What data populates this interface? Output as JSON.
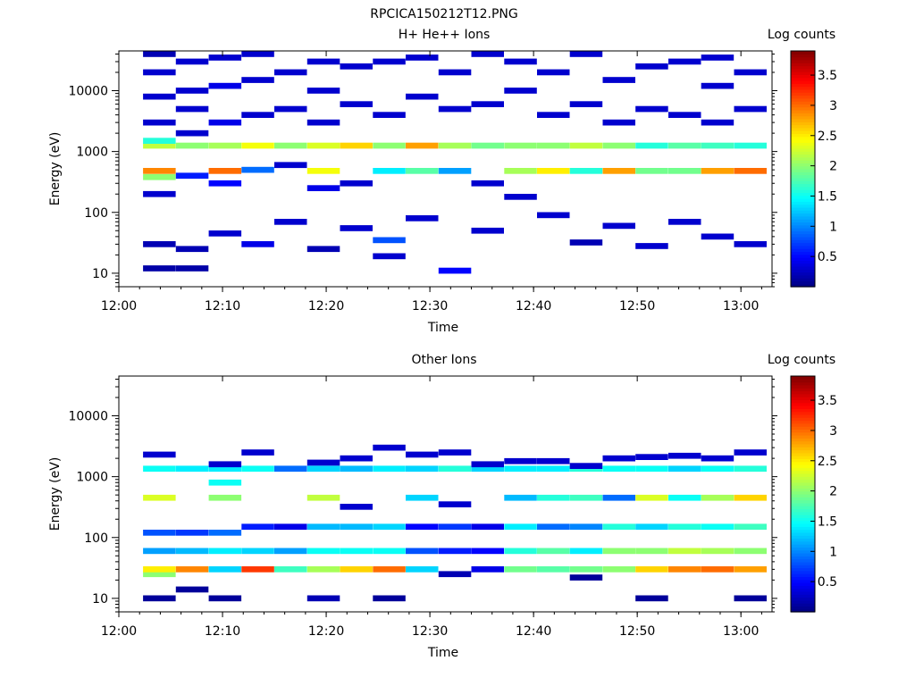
{
  "figure_title": "RPCICA150212T12.PNG",
  "chart_data": [
    {
      "type": "heatmap",
      "title": "H+ He++ Ions",
      "xlabel": "Time",
      "ylabel": "Energy (eV)",
      "colorbar_label": "Log counts",
      "x_ticks": [
        "12:00",
        "12:10",
        "12:20",
        "12:30",
        "12:40",
        "12:50",
        "13:00"
      ],
      "y_ticks": [
        "10",
        "100",
        "1000",
        "10000"
      ],
      "colorbar_ticks": [
        "0.5",
        "1",
        "1.5",
        "2",
        "2.5",
        "3",
        "3.5"
      ],
      "y_scale": "log",
      "y_range_eV": [
        6,
        45000
      ],
      "x_range": [
        "12:00",
        "13:03"
      ],
      "color_range": [
        0,
        3.9
      ],
      "colormap": "jet",
      "time_bins_start": [
        "12:02:20",
        "12:05:30",
        "12:08:40",
        "12:11:50",
        "12:15:00",
        "12:18:10",
        "12:21:20",
        "12:24:30",
        "12:27:40",
        "12:30:50",
        "12:34:00",
        "12:37:10",
        "12:40:20",
        "12:43:30",
        "12:46:40",
        "12:49:50",
        "12:53:00",
        "12:56:10",
        "12:59:20"
      ],
      "time_bin_width_min": 3.15,
      "columns": [
        [
          [
            12,
            0.15
          ],
          [
            30,
            0.2
          ],
          [
            200,
            0.3
          ],
          [
            380,
            2.0
          ],
          [
            480,
            2.9
          ],
          [
            1250,
            2.2
          ],
          [
            1500,
            1.6
          ],
          [
            3000,
            0.3
          ],
          [
            8000,
            0.3
          ],
          [
            20000,
            0.3
          ],
          [
            40000,
            0.2
          ]
        ],
        [
          [
            12,
            0.15
          ],
          [
            25,
            0.2
          ],
          [
            400,
            0.6
          ],
          [
            1250,
            2.0
          ],
          [
            2000,
            0.3
          ],
          [
            5000,
            0.3
          ],
          [
            10000,
            0.3
          ],
          [
            30000,
            0.3
          ]
        ],
        [
          [
            45,
            0.3
          ],
          [
            300,
            0.5
          ],
          [
            480,
            3.0
          ],
          [
            1250,
            2.1
          ],
          [
            3000,
            0.4
          ],
          [
            12000,
            0.4
          ],
          [
            35000,
            0.3
          ]
        ],
        [
          [
            30,
            0.4
          ],
          [
            500,
            0.9
          ],
          [
            1250,
            2.4
          ],
          [
            4000,
            0.3
          ],
          [
            15000,
            0.3
          ],
          [
            40000,
            0.3
          ]
        ],
        [
          [
            70,
            0.3
          ],
          [
            600,
            0.3
          ],
          [
            1250,
            2.0
          ],
          [
            5000,
            0.3
          ],
          [
            20000,
            0.3
          ]
        ],
        [
          [
            25,
            0.2
          ],
          [
            250,
            0.4
          ],
          [
            480,
            2.4
          ],
          [
            1250,
            2.3
          ],
          [
            3000,
            0.3
          ],
          [
            10000,
            0.3
          ],
          [
            30000,
            0.3
          ]
        ],
        [
          [
            55,
            0.3
          ],
          [
            300,
            0.3
          ],
          [
            1250,
            2.6
          ],
          [
            6000,
            0.3
          ],
          [
            25000,
            0.3
          ]
        ],
        [
          [
            19,
            0.3
          ],
          [
            35,
            0.8
          ],
          [
            480,
            1.4
          ],
          [
            1250,
            2.0
          ],
          [
            4000,
            0.3
          ],
          [
            30000,
            0.3
          ]
        ],
        [
          [
            80,
            0.3
          ],
          [
            480,
            1.8
          ],
          [
            1250,
            2.8
          ],
          [
            8000,
            0.3
          ],
          [
            35000,
            0.3
          ]
        ],
        [
          [
            11,
            0.5
          ],
          [
            480,
            1.1
          ],
          [
            1250,
            2.1
          ],
          [
            5000,
            0.3
          ],
          [
            20000,
            0.3
          ]
        ],
        [
          [
            50,
            0.3
          ],
          [
            300,
            0.3
          ],
          [
            1250,
            1.9
          ],
          [
            6000,
            0.3
          ],
          [
            40000,
            0.3
          ]
        ],
        [
          [
            180,
            0.3
          ],
          [
            480,
            2.1
          ],
          [
            1250,
            2.0
          ],
          [
            10000,
            0.3
          ],
          [
            30000,
            0.3
          ]
        ],
        [
          [
            90,
            0.3
          ],
          [
            480,
            2.5
          ],
          [
            1250,
            2.0
          ],
          [
            4000,
            0.3
          ],
          [
            20000,
            0.3
          ]
        ],
        [
          [
            32,
            0.2
          ],
          [
            480,
            1.6
          ],
          [
            1250,
            2.2
          ],
          [
            6000,
            0.3
          ],
          [
            40000,
            0.3
          ]
        ],
        [
          [
            60,
            0.3
          ],
          [
            480,
            2.8
          ],
          [
            1250,
            2.0
          ],
          [
            3000,
            0.3
          ],
          [
            15000,
            0.3
          ]
        ],
        [
          [
            28,
            0.3
          ],
          [
            480,
            1.9
          ],
          [
            1250,
            1.6
          ],
          [
            5000,
            0.3
          ],
          [
            25000,
            0.3
          ]
        ],
        [
          [
            70,
            0.3
          ],
          [
            480,
            1.9
          ],
          [
            1250,
            1.8
          ],
          [
            4000,
            0.3
          ],
          [
            30000,
            0.3
          ]
        ],
        [
          [
            40,
            0.3
          ],
          [
            480,
            2.8
          ],
          [
            1250,
            1.7
          ],
          [
            3000,
            0.3
          ],
          [
            12000,
            0.3
          ],
          [
            35000,
            0.3
          ]
        ],
        [
          [
            30,
            0.3
          ],
          [
            480,
            3.0
          ],
          [
            1250,
            1.6
          ],
          [
            5000,
            0.3
          ],
          [
            20000,
            0.3
          ]
        ]
      ]
    },
    {
      "type": "heatmap",
      "title": "Other Ions",
      "xlabel": "Time",
      "ylabel": "Energy (eV)",
      "colorbar_label": "Log counts",
      "x_ticks": [
        "12:00",
        "12:10",
        "12:20",
        "12:30",
        "12:40",
        "12:50",
        "13:00"
      ],
      "y_ticks": [
        "10",
        "100",
        "1000",
        "10000"
      ],
      "colorbar_ticks": [
        "0.5",
        "1",
        "1.5",
        "2",
        "2.5",
        "3",
        "3.5"
      ],
      "y_scale": "log",
      "y_range_eV": [
        6,
        45000
      ],
      "x_range": [
        "12:00",
        "13:03"
      ],
      "color_range": [
        0,
        3.9
      ],
      "colormap": "jet",
      "time_bins_start": [
        "12:02:20",
        "12:05:30",
        "12:08:40",
        "12:11:50",
        "12:15:00",
        "12:18:10",
        "12:21:20",
        "12:24:30",
        "12:27:40",
        "12:30:50",
        "12:34:00",
        "12:37:10",
        "12:40:20",
        "12:43:30",
        "12:46:40",
        "12:49:50",
        "12:53:00",
        "12:56:10",
        "12:59:20"
      ],
      "time_bin_width_min": 3.15,
      "columns": [
        [
          [
            10,
            0.1
          ],
          [
            25,
            2.0
          ],
          [
            30,
            2.5
          ],
          [
            60,
            1.1
          ],
          [
            120,
            0.8
          ],
          [
            450,
            2.3
          ],
          [
            1350,
            1.5
          ],
          [
            2300,
            0.3
          ]
        ],
        [
          [
            14,
            0.1
          ],
          [
            30,
            2.9
          ],
          [
            60,
            1.2
          ],
          [
            120,
            0.7
          ],
          [
            1350,
            1.4
          ]
        ],
        [
          [
            10,
            0.1
          ],
          [
            30,
            1.3
          ],
          [
            60,
            1.4
          ],
          [
            120,
            0.9
          ],
          [
            450,
            2.0
          ],
          [
            800,
            1.5
          ],
          [
            1350,
            1.4
          ],
          [
            1600,
            0.3
          ]
        ],
        [
          [
            30,
            3.2
          ],
          [
            60,
            1.3
          ],
          [
            150,
            0.6
          ],
          [
            1350,
            1.5
          ],
          [
            2500,
            0.3
          ]
        ],
        [
          [
            30,
            1.7
          ],
          [
            60,
            1.1
          ],
          [
            150,
            0.4
          ],
          [
            1350,
            0.9
          ]
        ],
        [
          [
            10,
            0.2
          ],
          [
            30,
            2.1
          ],
          [
            60,
            1.5
          ],
          [
            150,
            1.2
          ],
          [
            450,
            2.2
          ],
          [
            1350,
            1.3
          ],
          [
            1700,
            0.3
          ]
        ],
        [
          [
            30,
            2.6
          ],
          [
            60,
            1.5
          ],
          [
            150,
            1.2
          ],
          [
            320,
            0.3
          ],
          [
            1350,
            1.2
          ],
          [
            2000,
            0.3
          ]
        ],
        [
          [
            10,
            0.1
          ],
          [
            30,
            3.0
          ],
          [
            60,
            1.5
          ],
          [
            150,
            1.3
          ],
          [
            1350,
            1.4
          ],
          [
            3000,
            0.3
          ]
        ],
        [
          [
            30,
            1.3
          ],
          [
            60,
            0.8
          ],
          [
            150,
            0.5
          ],
          [
            450,
            1.3
          ],
          [
            1350,
            1.3
          ],
          [
            2300,
            0.3
          ]
        ],
        [
          [
            25,
            0.2
          ],
          [
            60,
            0.6
          ],
          [
            150,
            0.7
          ],
          [
            350,
            0.3
          ],
          [
            1350,
            1.6
          ],
          [
            2500,
            0.3
          ]
        ],
        [
          [
            30,
            0.4
          ],
          [
            60,
            0.5
          ],
          [
            150,
            0.4
          ],
          [
            1350,
            1.3
          ],
          [
            1600,
            0.3
          ]
        ],
        [
          [
            30,
            1.9
          ],
          [
            60,
            1.6
          ],
          [
            150,
            1.4
          ],
          [
            450,
            1.2
          ],
          [
            1350,
            1.4
          ],
          [
            1800,
            0.3
          ]
        ],
        [
          [
            30,
            1.8
          ],
          [
            60,
            1.8
          ],
          [
            150,
            0.9
          ],
          [
            450,
            1.6
          ],
          [
            1350,
            1.4
          ],
          [
            1800,
            0.3
          ]
        ],
        [
          [
            22,
            0.1
          ],
          [
            30,
            1.9
          ],
          [
            60,
            1.4
          ],
          [
            150,
            1.0
          ],
          [
            450,
            1.7
          ],
          [
            1350,
            1.6
          ],
          [
            1500,
            0.3
          ]
        ],
        [
          [
            30,
            2.0
          ],
          [
            60,
            2.0
          ],
          [
            150,
            1.6
          ],
          [
            450,
            0.9
          ],
          [
            1350,
            1.5
          ],
          [
            2000,
            0.3
          ]
        ],
        [
          [
            10,
            0.1
          ],
          [
            30,
            2.6
          ],
          [
            60,
            2.0
          ],
          [
            150,
            1.3
          ],
          [
            450,
            2.3
          ],
          [
            1350,
            1.5
          ],
          [
            2100,
            0.3
          ]
        ],
        [
          [
            30,
            2.9
          ],
          [
            60,
            2.2
          ],
          [
            150,
            1.6
          ],
          [
            450,
            1.5
          ],
          [
            1350,
            1.3
          ],
          [
            2200,
            0.3
          ]
        ],
        [
          [
            30,
            3.0
          ],
          [
            60,
            2.1
          ],
          [
            150,
            1.5
          ],
          [
            450,
            2.1
          ],
          [
            1350,
            1.5
          ],
          [
            2000,
            0.3
          ]
        ],
        [
          [
            10,
            0.1
          ],
          [
            30,
            2.8
          ],
          [
            60,
            2.0
          ],
          [
            150,
            1.7
          ],
          [
            450,
            2.6
          ],
          [
            1350,
            1.6
          ],
          [
            2500,
            0.3
          ]
        ]
      ]
    }
  ]
}
